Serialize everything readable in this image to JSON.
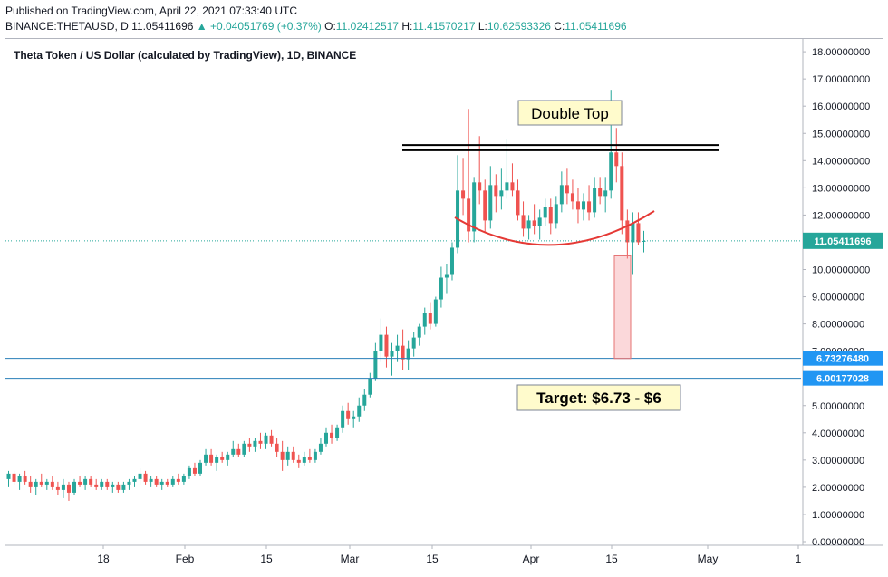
{
  "header": {
    "published": "Published on TradingView.com, April 22, 2021 07:33:40 UTC",
    "symbol": "BINANCE:THETAUSD, D",
    "last": "11.05411696",
    "change": "▲ +0.04051769 (+0.37%)",
    "open_label": "O:",
    "open": "11.02412517",
    "high_label": "H:",
    "high": "11.41570217",
    "low_label": "L:",
    "low": "10.62593326",
    "close_label": "C:",
    "close": "11.05411696"
  },
  "chart_title": "Theta Token / US Dollar (calculated by TradingView), 1D, BINANCE",
  "annotations": {
    "double_top": "Double Top",
    "target": "Target: $6.73 - $6"
  },
  "colors": {
    "up": "#26a69a",
    "down": "#ef5350",
    "level_line": "#2a7fb8",
    "price_label_bg": "#26a69a",
    "level_label_bg": "#2196f3",
    "callout_bg": "#fffbcc"
  },
  "chart_data": {
    "type": "candlestick",
    "y_ticks": [
      "0.00000000",
      "1.00000000",
      "2.00000000",
      "3.00000000",
      "4.00000000",
      "5.00000000",
      "6.00000000",
      "7.00000000",
      "8.00000000",
      "9.00000000",
      "10.00000000",
      "11.00000000",
      "12.00000000",
      "13.00000000",
      "14.00000000",
      "15.00000000",
      "16.00000000",
      "17.00000000",
      "18.00000000"
    ],
    "ylim": [
      0,
      18.3
    ],
    "x_ticks": [
      "18",
      "Feb",
      "15",
      "Mar",
      "15",
      "Apr",
      "15",
      "May",
      "1"
    ],
    "last_price": "11.05411696",
    "levels": [
      {
        "label": "6.73276480",
        "value": 6.7327648
      },
      {
        "label": "6.00177028",
        "value": 6.00177028
      }
    ],
    "resistance_lines": [
      14.57,
      14.38
    ],
    "ohlc": [
      [
        2.3,
        2.6,
        2.0,
        2.5
      ],
      [
        2.5,
        2.6,
        2.1,
        2.2
      ],
      [
        2.2,
        2.5,
        1.9,
        2.4
      ],
      [
        2.4,
        2.6,
        2.1,
        2.2
      ],
      [
        2.2,
        2.4,
        1.8,
        2.0
      ],
      [
        2.0,
        2.3,
        1.7,
        2.2
      ],
      [
        2.2,
        2.5,
        2.0,
        2.1
      ],
      [
        2.1,
        2.3,
        1.9,
        2.2
      ],
      [
        2.2,
        2.4,
        1.9,
        2.0
      ],
      [
        2.0,
        2.2,
        1.7,
        1.9
      ],
      [
        1.9,
        2.3,
        1.6,
        2.1
      ],
      [
        2.1,
        2.2,
        1.5,
        1.8
      ],
      [
        1.8,
        2.3,
        1.7,
        2.2
      ],
      [
        2.2,
        2.4,
        2.0,
        2.1
      ],
      [
        2.1,
        2.4,
        1.9,
        2.3
      ],
      [
        2.3,
        2.4,
        2.0,
        2.1
      ],
      [
        2.1,
        2.3,
        1.9,
        2.0
      ],
      [
        2.0,
        2.3,
        1.9,
        2.2
      ],
      [
        2.2,
        2.3,
        1.9,
        2.0
      ],
      [
        2.0,
        2.2,
        1.8,
        2.1
      ],
      [
        2.1,
        2.2,
        1.8,
        1.9
      ],
      [
        1.9,
        2.2,
        1.8,
        2.1
      ],
      [
        2.1,
        2.3,
        1.9,
        2.2
      ],
      [
        2.2,
        2.4,
        2.0,
        2.3
      ],
      [
        2.3,
        2.7,
        2.1,
        2.5
      ],
      [
        2.5,
        2.6,
        2.1,
        2.2
      ],
      [
        2.2,
        2.4,
        2.0,
        2.3
      ],
      [
        2.3,
        2.4,
        2.0,
        2.1
      ],
      [
        2.1,
        2.3,
        1.9,
        2.2
      ],
      [
        2.2,
        2.3,
        2.0,
        2.1
      ],
      [
        2.1,
        2.4,
        2.0,
        2.3
      ],
      [
        2.3,
        2.5,
        2.1,
        2.2
      ],
      [
        2.2,
        2.5,
        2.1,
        2.4
      ],
      [
        2.4,
        2.8,
        2.3,
        2.7
      ],
      [
        2.7,
        2.9,
        2.4,
        2.5
      ],
      [
        2.5,
        3.0,
        2.4,
        2.9
      ],
      [
        2.9,
        3.4,
        2.8,
        3.2
      ],
      [
        3.2,
        3.4,
        2.8,
        2.9
      ],
      [
        2.9,
        3.2,
        2.6,
        3.1
      ],
      [
        3.1,
        3.3,
        2.9,
        3.0
      ],
      [
        3.0,
        3.3,
        2.8,
        3.2
      ],
      [
        3.2,
        3.7,
        3.1,
        3.4
      ],
      [
        3.4,
        3.6,
        3.1,
        3.2
      ],
      [
        3.2,
        3.7,
        3.1,
        3.6
      ],
      [
        3.6,
        3.8,
        3.3,
        3.5
      ],
      [
        3.5,
        3.8,
        3.3,
        3.7
      ],
      [
        3.7,
        4.0,
        3.4,
        3.6
      ],
      [
        3.6,
        4.0,
        3.4,
        3.9
      ],
      [
        3.9,
        4.1,
        3.5,
        3.6
      ],
      [
        3.6,
        3.8,
        3.1,
        3.3
      ],
      [
        3.3,
        3.7,
        2.6,
        3.0
      ],
      [
        3.0,
        3.5,
        2.8,
        3.3
      ],
      [
        3.3,
        3.5,
        2.9,
        3.0
      ],
      [
        3.0,
        3.2,
        2.7,
        2.9
      ],
      [
        2.9,
        3.3,
        2.8,
        3.1
      ],
      [
        3.1,
        3.4,
        2.9,
        3.0
      ],
      [
        3.0,
        3.4,
        2.9,
        3.3
      ],
      [
        3.3,
        3.8,
        3.2,
        3.6
      ],
      [
        3.6,
        4.2,
        3.5,
        4.0
      ],
      [
        4.0,
        4.3,
        3.6,
        3.8
      ],
      [
        3.8,
        4.3,
        3.7,
        4.2
      ],
      [
        4.2,
        5.0,
        4.0,
        4.8
      ],
      [
        4.8,
        5.1,
        4.3,
        4.5
      ],
      [
        4.5,
        4.8,
        4.2,
        4.6
      ],
      [
        4.6,
        5.3,
        4.4,
        5.0
      ],
      [
        5.0,
        5.6,
        4.8,
        5.4
      ],
      [
        5.4,
        6.2,
        5.3,
        6.0
      ],
      [
        6.0,
        7.3,
        5.9,
        7.0
      ],
      [
        7.0,
        8.2,
        6.6,
        7.6
      ],
      [
        7.6,
        7.9,
        6.4,
        6.8
      ],
      [
        6.8,
        7.3,
        6.1,
        7.0
      ],
      [
        7.0,
        7.6,
        6.6,
        7.2
      ],
      [
        7.2,
        7.8,
        6.3,
        6.7
      ],
      [
        6.7,
        7.4,
        6.3,
        7.1
      ],
      [
        7.1,
        7.7,
        6.8,
        7.5
      ],
      [
        7.5,
        8.0,
        7.2,
        7.9
      ],
      [
        7.9,
        8.6,
        7.6,
        8.4
      ],
      [
        8.4,
        8.8,
        7.8,
        8.0
      ],
      [
        8.0,
        9.0,
        7.9,
        8.9
      ],
      [
        8.9,
        10.1,
        8.6,
        9.7
      ],
      [
        9.7,
        10.2,
        9.1,
        9.8
      ],
      [
        9.8,
        11.0,
        9.6,
        10.8
      ],
      [
        10.8,
        14.2,
        10.6,
        12.9
      ],
      [
        12.9,
        14.1,
        12.0,
        12.6
      ],
      [
        12.6,
        15.9,
        11.0,
        11.4
      ],
      [
        11.4,
        13.4,
        11.0,
        13.2
      ],
      [
        13.2,
        14.9,
        12.4,
        12.9
      ],
      [
        12.9,
        13.3,
        11.4,
        11.8
      ],
      [
        11.8,
        13.8,
        11.5,
        13.1
      ],
      [
        13.1,
        13.5,
        12.1,
        12.7
      ],
      [
        12.7,
        13.7,
        12.2,
        12.9
      ],
      [
        12.9,
        14.8,
        12.6,
        13.2
      ],
      [
        13.2,
        13.9,
        12.7,
        12.9
      ],
      [
        12.9,
        13.3,
        11.8,
        12.0
      ],
      [
        12.0,
        12.5,
        11.2,
        11.5
      ],
      [
        11.5,
        12.0,
        11.1,
        11.8
      ],
      [
        11.8,
        12.4,
        11.3,
        11.6
      ],
      [
        11.6,
        12.2,
        11.1,
        11.9
      ],
      [
        11.9,
        12.6,
        11.6,
        12.3
      ],
      [
        12.3,
        12.6,
        11.3,
        11.7
      ],
      [
        11.7,
        12.7,
        11.5,
        12.4
      ],
      [
        12.4,
        13.6,
        12.1,
        13.1
      ],
      [
        13.1,
        13.7,
        12.4,
        12.8
      ],
      [
        12.8,
        13.3,
        12.2,
        12.5
      ],
      [
        12.5,
        13.0,
        11.7,
        12.2
      ],
      [
        12.2,
        12.8,
        11.8,
        12.5
      ],
      [
        12.5,
        13.1,
        11.8,
        12.1
      ],
      [
        12.1,
        13.4,
        11.9,
        13.0
      ],
      [
        13.0,
        13.4,
        12.4,
        12.7
      ],
      [
        12.7,
        13.4,
        12.1,
        12.9
      ],
      [
        12.9,
        16.6,
        12.6,
        14.3
      ],
      [
        14.3,
        15.2,
        13.2,
        13.8
      ],
      [
        13.8,
        14.3,
        11.3,
        11.8
      ],
      [
        11.8,
        12.2,
        10.4,
        11.0
      ],
      [
        11.0,
        12.1,
        9.8,
        11.7
      ],
      [
        11.7,
        12.1,
        10.9,
        11.0
      ],
      [
        11.02,
        11.42,
        10.63,
        11.05
      ]
    ]
  }
}
